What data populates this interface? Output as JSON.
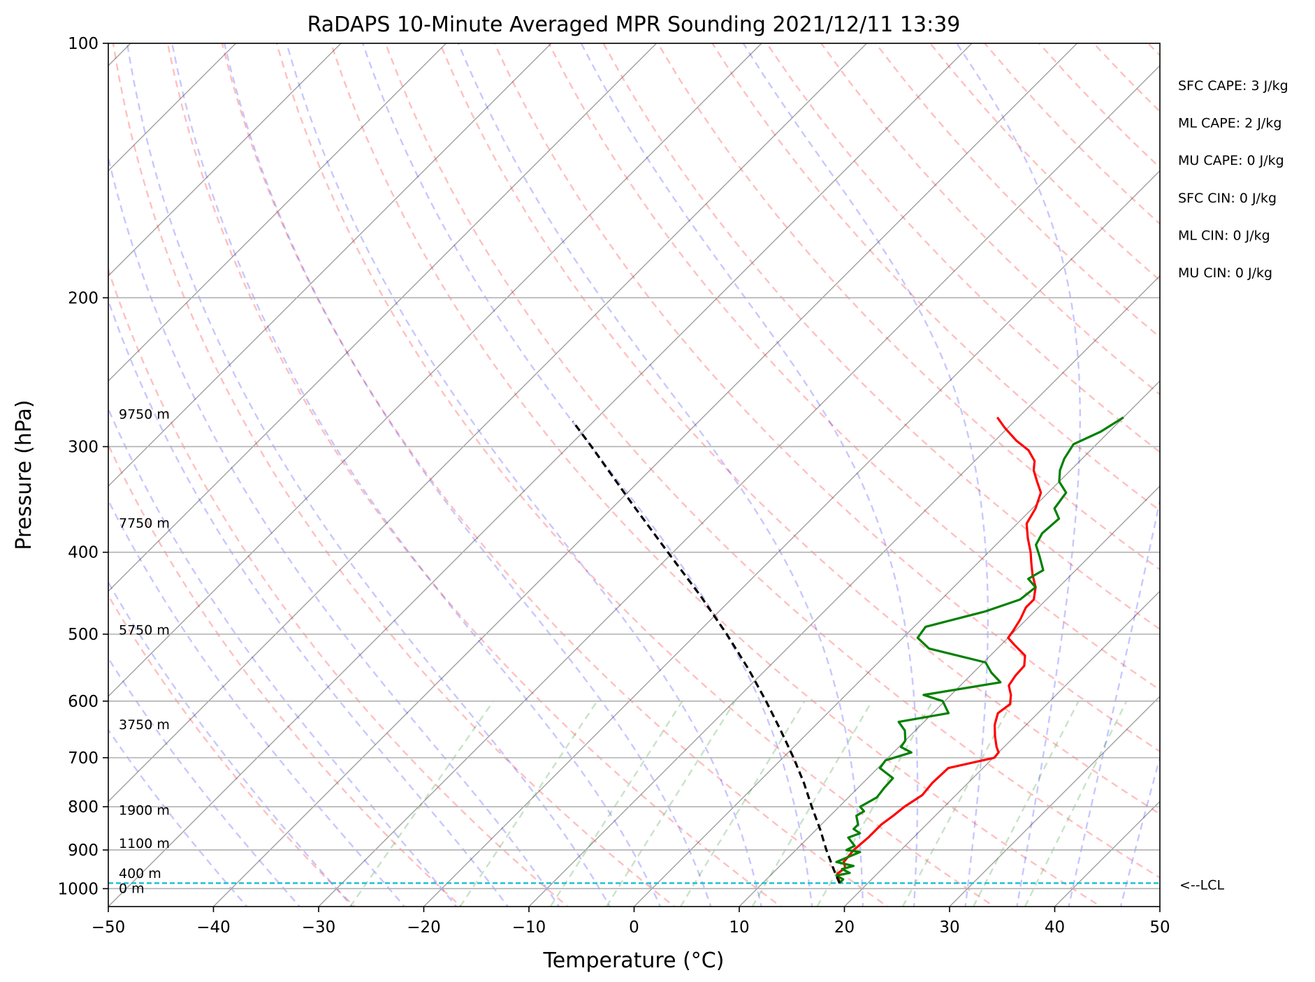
{
  "chart_data": {
    "type": "line",
    "subtype": "skew-t log-p sounding",
    "title": "RaDAPS 10-Minute Averaged MPR Sounding 2021/12/11 13:39",
    "xlabel": "Temperature (°C)",
    "ylabel": "Pressure (hPa)",
    "xlim": [
      -50,
      50
    ],
    "ylim": [
      1050,
      100
    ],
    "y_scale": "log",
    "grid": true,
    "x_ticks": [
      -50,
      -40,
      -30,
      -20,
      -10,
      0,
      10,
      20,
      30,
      40,
      50
    ],
    "x_tick_labels": [
      "−50",
      "−40",
      "−30",
      "−20",
      "−10",
      "0",
      "10",
      "20",
      "30",
      "40",
      "50"
    ],
    "y_ticks": [
      1000,
      900,
      800,
      700,
      600,
      500,
      400,
      300,
      200,
      100
    ],
    "y_tick_labels": [
      "1000",
      "900",
      "800",
      "700",
      "600",
      "500",
      "400",
      "300",
      "200",
      "100"
    ],
    "series": [
      {
        "role": "temperature",
        "color": "#ff0000",
        "pressure": [
          985,
          975,
          960,
          945,
          930,
          900,
          870,
          840,
          820,
          800,
          775,
          750,
          720,
          700,
          690,
          680,
          660,
          640,
          620,
          605,
          590,
          575,
          560,
          545,
          530,
          515,
          505,
          495,
          480,
          465,
          455,
          440,
          425,
          412,
          400,
          385,
          370,
          355,
          340,
          330,
          320,
          312,
          303,
          295,
          285,
          277
        ],
        "temperature": [
          17.3,
          16.9,
          16.2,
          16.4,
          15.7,
          15.5,
          15.7,
          15.7,
          16.0,
          16.2,
          16.8,
          16.6,
          16.7,
          20.1,
          20.0,
          19.3,
          18.1,
          17.0,
          16.2,
          16.5,
          15.7,
          14.6,
          14.3,
          14.2,
          13.3,
          11.3,
          10.0,
          9.8,
          9.4,
          8.8,
          8.8,
          7.8,
          6.3,
          5.1,
          4.0,
          2.4,
          0.9,
          0.3,
          -0.7,
          -2.1,
          -3.5,
          -4.3,
          -5.9,
          -8.0,
          -10.3,
          -12.0
        ]
      },
      {
        "role": "dewpoint",
        "color": "#008000",
        "pressure": [
          985,
          975,
          965,
          958,
          948,
          940,
          930,
          905,
          900,
          890,
          870,
          860,
          850,
          840,
          820,
          810,
          800,
          780,
          760,
          740,
          720,
          705,
          690,
          680,
          668,
          650,
          635,
          620,
          600,
          590,
          570,
          555,
          540,
          520,
          505,
          490,
          470,
          455,
          440,
          430,
          420,
          405,
          392,
          380,
          365,
          355,
          340,
          330,
          320,
          310,
          298,
          288,
          277
        ],
        "temperature": [
          17.3,
          17.3,
          16.3,
          17.3,
          16.2,
          17.0,
          15.0,
          16.3,
          14.8,
          15.2,
          13.8,
          14.5,
          13.5,
          13.5,
          12.5,
          12.8,
          12.0,
          12.7,
          12.5,
          12.4,
          10.2,
          10.0,
          11.7,
          10.2,
          10.0,
          9.0,
          7.6,
          11.5,
          9.8,
          7.4,
          13.5,
          11.7,
          10.2,
          3.5,
          1.4,
          1.1,
          5.3,
          7.5,
          7.8,
          6.3,
          6.9,
          5.3,
          3.8,
          3.3,
          3.5,
          2.1,
          1.7,
          0.0,
          -1.0,
          -1.7,
          -2.2,
          -0.8,
          0.0
        ]
      },
      {
        "role": "parcel-path",
        "color": "#000000",
        "style": "dashed",
        "pressure": [
          985,
          950,
          900,
          850,
          800,
          750,
          700,
          650,
          600,
          550,
          500,
          450,
          400,
          350,
          300,
          280
        ],
        "temperature": [
          17.3,
          15.5,
          12.9,
          10.3,
          7.4,
          4.4,
          1.0,
          -2.8,
          -7.0,
          -11.7,
          -17.1,
          -23.3,
          -30.5,
          -38.6,
          -47.8,
          -52.0
        ]
      }
    ],
    "height_markers": [
      {
        "label": "0 m",
        "pressure": 1000
      },
      {
        "label": "400 m",
        "pressure": 960
      },
      {
        "label": "1100 m",
        "pressure": 885
      },
      {
        "label": "1900 m",
        "pressure": 808
      },
      {
        "label": "3750 m",
        "pressure": 640
      },
      {
        "label": "5750 m",
        "pressure": 495
      },
      {
        "label": "7750 m",
        "pressure": 370
      },
      {
        "label": "9750 m",
        "pressure": 275
      }
    ],
    "lcl": {
      "label": "<--LCL",
      "pressure": 985,
      "color": "#17becf"
    },
    "indices": [
      "SFC CAPE: 3 J/kg",
      "ML CAPE: 2 J/kg",
      "MU CAPE: 0 J/kg",
      "SFC CIN: 0 J/kg",
      "ML CIN: 0 J/kg",
      "MU CIN: 0 J/kg"
    ],
    "background_lines": {
      "isotherms_color": "#a0a0a0",
      "dry_adiabats_color": "#ff0000",
      "moist_adiabats_color": "#0000ff",
      "mixing_ratio_color": "#008000"
    }
  }
}
